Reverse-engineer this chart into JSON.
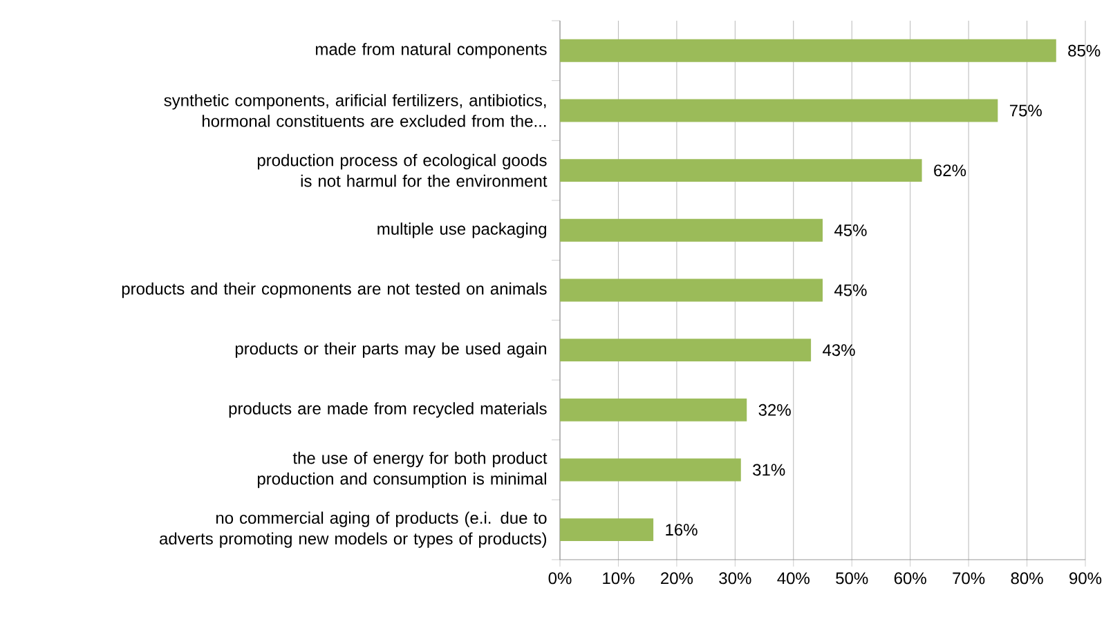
{
  "chart_data": {
    "type": "bar",
    "orientation": "horizontal",
    "categories": [
      "made from natural components",
      "synthetic components, arificial fertilizers, antibiotics, hormonal constituents are excluded from the...",
      "production process of ecological goods is not harmul for the environment",
      "multiple use packaging",
      "products and their copmonents are not tested on animals",
      "products or their parts may be used again",
      "products are made from recycled materials",
      "the use of energy for both product production and consumption is minimal",
      "no commercial aging of products (e.i. due to adverts promoting new models or types of products)"
    ],
    "values": [
      85,
      75,
      62,
      45,
      45,
      43,
      32,
      31,
      16
    ],
    "value_labels": [
      "85%",
      "75%",
      "62%",
      "45%",
      "45%",
      "43%",
      "32%",
      "31%",
      "16%"
    ],
    "color": "#9bbb59",
    "xlim": [
      0,
      90
    ],
    "xticks": [
      {
        "value": 0,
        "label": "0%"
      },
      {
        "value": 10,
        "label": "10%"
      },
      {
        "value": 20,
        "label": "20%"
      },
      {
        "value": 30,
        "label": "30%"
      },
      {
        "value": 40,
        "label": "40%"
      },
      {
        "value": 50,
        "label": "50%"
      },
      {
        "value": 60,
        "label": "60%"
      },
      {
        "value": 70,
        "label": "70%"
      },
      {
        "value": 80,
        "label": "80%"
      },
      {
        "value": 90,
        "label": "90%"
      }
    ],
    "grid": "x"
  }
}
